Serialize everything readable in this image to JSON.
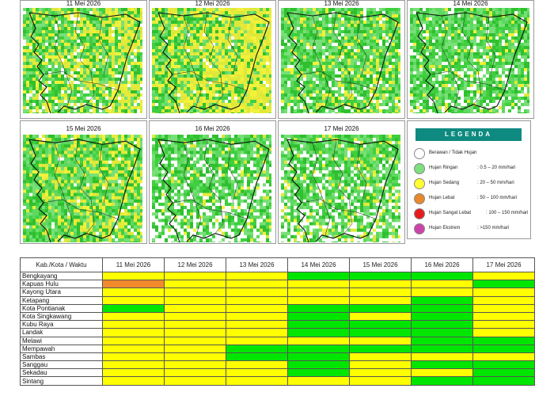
{
  "maps": [
    {
      "date": "11 Mei 2026"
    },
    {
      "date": "12 Mei 2026"
    },
    {
      "date": "13 Mei 2026"
    },
    {
      "date": "14 Mei 2026"
    },
    {
      "date": "15 Mei 2026"
    },
    {
      "date": "16 Mei 2026"
    },
    {
      "date": "17 Mei 2026"
    }
  ],
  "legend": {
    "title": "LEGENDA",
    "items": [
      {
        "label": "Berawan / Tidak Hujan",
        "range": "",
        "color": "#ffffff"
      },
      {
        "label": "Hujan Ringan",
        "range": ": 0.5 – 20 mm/hari",
        "color": "#7ee07e"
      },
      {
        "label": "Hujan Sedang",
        "range": ": 20 – 50 mm/hari",
        "color": "#ffff33"
      },
      {
        "label": "Hujan Lebat",
        "range": ": 50 – 100 mm/hari",
        "color": "#e8892b"
      },
      {
        "label": "Hujan Sangat Lebat",
        "range": ": 100 – 150 mm/hari",
        "color": "#e61c1c"
      },
      {
        "label": "Hujan Ekstrem",
        "range": ": >150 mm/hari",
        "color": "#cc44aa"
      }
    ]
  },
  "table": {
    "header": "Kab./Kota / Waktu",
    "dates": [
      "11 Mei 2026",
      "12 Mei 2026",
      "13 Mei 2026",
      "14 Mei 2026",
      "15 Mei 2026",
      "16 Mei 2026",
      "17 Mei 2026"
    ],
    "colors": {
      "Y": "#ffff00",
      "G": "#00e600",
      "O": "#f08a2a",
      "W": "#ffffff"
    },
    "rows": [
      {
        "name": "Bengkayang",
        "cells": [
          "Y",
          "Y",
          "Y",
          "G",
          "G",
          "G",
          "Y"
        ]
      },
      {
        "name": "Kapuas Hulu",
        "cells": [
          "O",
          "Y",
          "Y",
          "Y",
          "Y",
          "Y",
          "G"
        ]
      },
      {
        "name": "Kayong Utara",
        "cells": [
          "Y",
          "Y",
          "Y",
          "Y",
          "Y",
          "Y",
          "Y"
        ]
      },
      {
        "name": "Ketapang",
        "cells": [
          "Y",
          "Y",
          "Y",
          "Y",
          "Y",
          "G",
          "Y"
        ]
      },
      {
        "name": "Kota Pontianak",
        "cells": [
          "G",
          "Y",
          "Y",
          "G",
          "G",
          "G",
          "Y"
        ]
      },
      {
        "name": "Kota Singkawang",
        "cells": [
          "Y",
          "Y",
          "Y",
          "G",
          "Y",
          "G",
          "Y"
        ]
      },
      {
        "name": "Kubu Raya",
        "cells": [
          "Y",
          "Y",
          "Y",
          "G",
          "G",
          "G",
          "Y"
        ]
      },
      {
        "name": "Landak",
        "cells": [
          "Y",
          "Y",
          "Y",
          "G",
          "G",
          "G",
          "Y"
        ]
      },
      {
        "name": "Melawi",
        "cells": [
          "Y",
          "Y",
          "Y",
          "Y",
          "Y",
          "G",
          "G"
        ]
      },
      {
        "name": "Mempawah",
        "cells": [
          "Y",
          "Y",
          "G",
          "G",
          "G",
          "G",
          "G"
        ]
      },
      {
        "name": "Sambas",
        "cells": [
          "Y",
          "Y",
          "G",
          "G",
          "Y",
          "Y",
          "Y"
        ]
      },
      {
        "name": "Sanggau",
        "cells": [
          "Y",
          "Y",
          "Y",
          "G",
          "Y",
          "G",
          "G"
        ]
      },
      {
        "name": "Sekadau",
        "cells": [
          "Y",
          "Y",
          "Y",
          "G",
          "Y",
          "Y",
          "G"
        ]
      },
      {
        "name": "Sintang",
        "cells": [
          "Y",
          "Y",
          "Y",
          "Y",
          "Y",
          "G",
          "G"
        ]
      }
    ]
  }
}
